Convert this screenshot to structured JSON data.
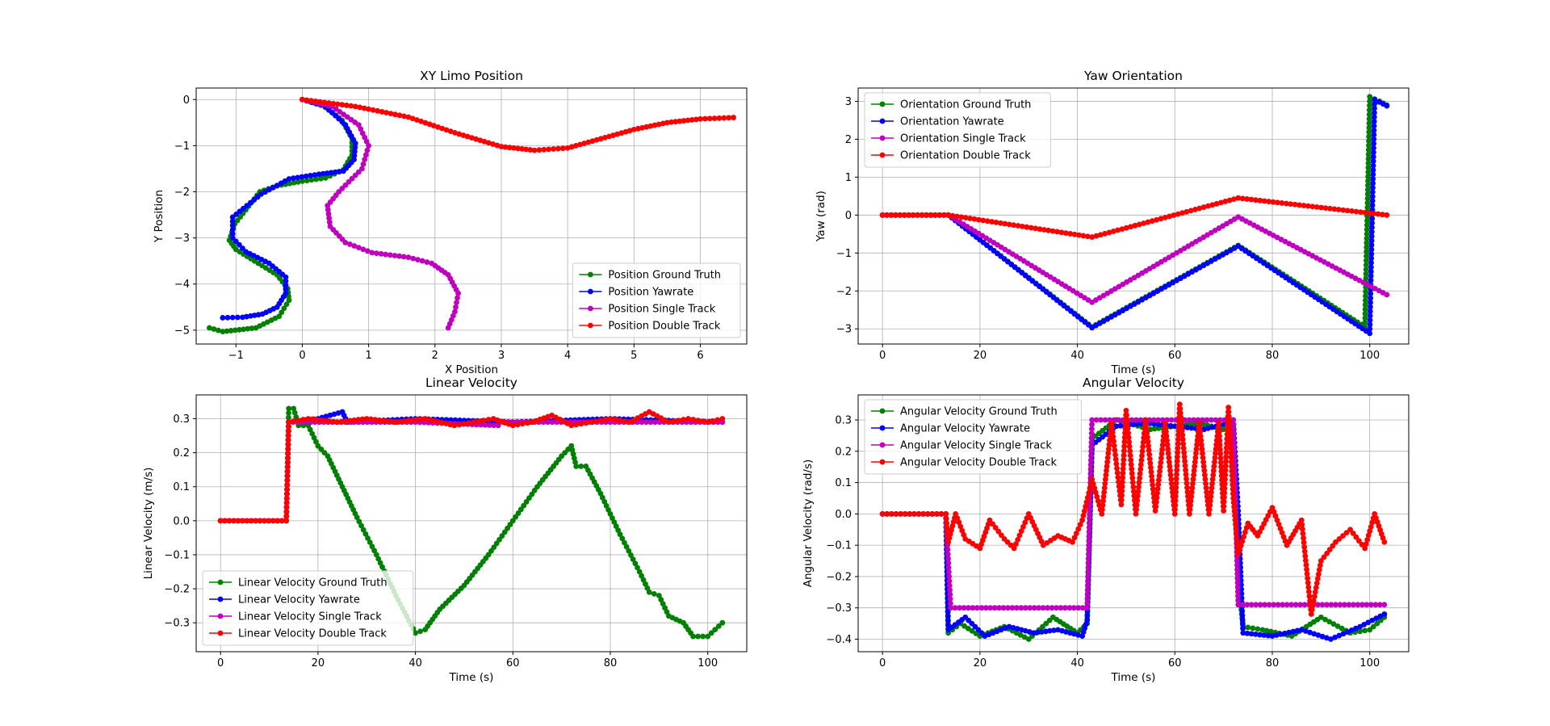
{
  "figure": {
    "background": "#ffffff"
  },
  "colors": {
    "green": "#008000",
    "blue": "#0000ff",
    "magenta": "#bf00bf",
    "red": "#ff0000"
  },
  "chart_data": [
    {
      "id": "xy",
      "type": "line",
      "title": "XY Limo Position",
      "xlabel": "X Position",
      "ylabel": "Y Position",
      "xlim": [
        -1.6,
        6.7
      ],
      "ylim": [
        -5.3,
        0.25
      ],
      "xticks": [
        -1,
        0,
        1,
        2,
        3,
        4,
        5,
        6
      ],
      "yticks": [
        -5,
        -4,
        -3,
        -2,
        -1,
        0
      ],
      "grid": true,
      "legend": "lower right",
      "series": [
        {
          "name": "Position Ground Truth",
          "color": "#008000",
          "x": [
            0,
            0.3,
            0.6,
            0.75,
            0.75,
            0.62,
            0.35,
            0.0,
            -0.38,
            -0.64,
            -1.02,
            -1.1,
            -1.0,
            -0.72,
            -0.38,
            -0.22,
            -0.2,
            -0.35,
            -0.7,
            -1.2,
            -1.4
          ],
          "y": [
            0,
            -0.12,
            -0.45,
            -0.85,
            -1.2,
            -1.52,
            -1.7,
            -1.77,
            -1.87,
            -2.0,
            -2.7,
            -3.05,
            -3.25,
            -3.5,
            -3.8,
            -4.1,
            -4.35,
            -4.7,
            -4.95,
            -5.03,
            -4.95
          ]
        },
        {
          "name": "Position Yawrate",
          "color": "#0000ff",
          "x": [
            0,
            0.35,
            0.65,
            0.8,
            0.78,
            0.62,
            0.25,
            -0.2,
            -0.62,
            -1.05,
            -1.05,
            -0.85,
            -0.5,
            -0.25,
            -0.25,
            -0.38,
            -0.6,
            -0.9,
            -1.2
          ],
          "y": [
            0,
            -0.15,
            -0.55,
            -0.95,
            -1.3,
            -1.55,
            -1.62,
            -1.72,
            -2.05,
            -2.55,
            -3.0,
            -3.3,
            -3.55,
            -3.85,
            -4.2,
            -4.5,
            -4.65,
            -4.72,
            -4.73
          ]
        },
        {
          "name": "Position Single Track",
          "color": "#bf00bf",
          "x": [
            0,
            0.45,
            0.85,
            1.0,
            0.9,
            0.55,
            0.38,
            0.42,
            0.65,
            1.05,
            1.6,
            1.95,
            2.2,
            2.35,
            2.3,
            2.2
          ],
          "y": [
            0,
            -0.15,
            -0.55,
            -1.0,
            -1.5,
            -2.0,
            -2.3,
            -2.75,
            -3.1,
            -3.32,
            -3.42,
            -3.55,
            -3.8,
            -4.2,
            -4.6,
            -4.95
          ]
        },
        {
          "name": "Position Double Track",
          "color": "#ff0000",
          "x": [
            0,
            0.8,
            1.6,
            2.3,
            3.0,
            3.5,
            4.0,
            4.5,
            5.0,
            5.5,
            6.0,
            6.5
          ],
          "y": [
            0,
            -0.15,
            -0.38,
            -0.72,
            -1.02,
            -1.1,
            -1.05,
            -0.85,
            -0.65,
            -0.5,
            -0.42,
            -0.39
          ]
        }
      ]
    },
    {
      "id": "yaw",
      "type": "line",
      "title": "Yaw Orientation",
      "xlabel": "Time (s)",
      "ylabel": "Yaw (rad)",
      "xlim": [
        -5,
        108
      ],
      "ylim": [
        -3.4,
        3.35
      ],
      "xticks": [
        0,
        20,
        40,
        60,
        80,
        100
      ],
      "yticks": [
        -3,
        -2,
        -1,
        0,
        1,
        2,
        3
      ],
      "grid": true,
      "legend": "upper left",
      "series": [
        {
          "name": "Orientation Ground Truth",
          "color": "#008000",
          "x": [
            0,
            13.5,
            43,
            73,
            99,
            100,
            102,
            103.5
          ],
          "y": [
            0,
            0,
            -2.95,
            -0.8,
            -2.95,
            3.12,
            3.0,
            2.9
          ]
        },
        {
          "name": "Orientation Yawrate",
          "color": "#0000ff",
          "x": [
            0,
            13.5,
            43,
            73,
            100,
            101,
            102,
            103.5
          ],
          "y": [
            0,
            0,
            -2.97,
            -0.82,
            -3.12,
            3.05,
            2.98,
            2.88
          ]
        },
        {
          "name": "Orientation Single Track",
          "color": "#bf00bf",
          "x": [
            0,
            13.5,
            43,
            73,
            103.5
          ],
          "y": [
            0,
            0,
            -2.3,
            -0.05,
            -2.1
          ]
        },
        {
          "name": "Orientation Double Track",
          "color": "#ff0000",
          "x": [
            0,
            13.5,
            43,
            73,
            103.5
          ],
          "y": [
            0,
            0,
            -0.58,
            0.45,
            0.0
          ]
        }
      ]
    },
    {
      "id": "linvel",
      "type": "line",
      "title": "Linear Velocity",
      "xlabel": "Time (s)",
      "ylabel": "Linear Velocity (m/s)",
      "xlim": [
        -5,
        108
      ],
      "ylim": [
        -0.385,
        0.37
      ],
      "xticks": [
        0,
        20,
        40,
        60,
        80,
        100
      ],
      "yticks": [
        -0.3,
        -0.2,
        -0.1,
        0.0,
        0.1,
        0.2,
        0.3
      ],
      "grid": true,
      "legend": "lower left",
      "series": [
        {
          "name": "Linear Velocity Ground Truth",
          "color": "#008000",
          "x": [
            0,
            13.5,
            14,
            15,
            16,
            18,
            20,
            22,
            25,
            28,
            32,
            36,
            40,
            42,
            45,
            50,
            55,
            60,
            65,
            70,
            72,
            73,
            75,
            78,
            82,
            86,
            88,
            90,
            92,
            95,
            97,
            100,
            103
          ],
          "y": [
            0,
            0,
            0.33,
            0.33,
            0.28,
            0.28,
            0.22,
            0.19,
            0.1,
            0.01,
            -0.1,
            -0.22,
            -0.33,
            -0.32,
            -0.26,
            -0.19,
            -0.1,
            0.0,
            0.1,
            0.19,
            0.22,
            0.16,
            0.16,
            0.08,
            -0.04,
            -0.15,
            -0.21,
            -0.22,
            -0.28,
            -0.3,
            -0.34,
            -0.34,
            -0.3
          ]
        },
        {
          "name": "Linear Velocity Yawrate",
          "color": "#0000ff",
          "x": [
            0,
            13.5,
            14,
            20,
            25,
            26,
            40,
            60,
            80,
            103
          ],
          "y": [
            0,
            0,
            0.29,
            0.3,
            0.32,
            0.29,
            0.3,
            0.29,
            0.3,
            0.29
          ]
        },
        {
          "name": "Linear Velocity Single Track",
          "color": "#bf00bf",
          "x": [
            0,
            13.5,
            14,
            40,
            57,
            58,
            80,
            103
          ],
          "y": [
            0,
            0,
            0.29,
            0.29,
            0.28,
            0.29,
            0.29,
            0.29
          ]
        },
        {
          "name": "Linear Velocity Double Track",
          "color": "#ff0000",
          "x": [
            0,
            13.5,
            14,
            18,
            24,
            30,
            36,
            42,
            48,
            52,
            56,
            60,
            64,
            68,
            72,
            76,
            80,
            84,
            88,
            92,
            96,
            100,
            103
          ],
          "y": [
            0,
            0,
            0.29,
            0.3,
            0.29,
            0.3,
            0.29,
            0.3,
            0.28,
            0.29,
            0.3,
            0.28,
            0.29,
            0.31,
            0.28,
            0.29,
            0.3,
            0.29,
            0.32,
            0.29,
            0.3,
            0.29,
            0.3
          ]
        }
      ]
    },
    {
      "id": "angvel",
      "type": "line",
      "title": "Angular Velocity",
      "xlabel": "Time (s)",
      "ylabel": "Angular Velocity (rad/s)",
      "xlim": [
        -5,
        108
      ],
      "ylim": [
        -0.44,
        0.38
      ],
      "xticks": [
        0,
        20,
        40,
        60,
        80,
        100
      ],
      "yticks": [
        -0.4,
        -0.3,
        -0.2,
        -0.1,
        0.0,
        0.1,
        0.2,
        0.3
      ],
      "grid": true,
      "legend": "upper left",
      "series": [
        {
          "name": "Angular Velocity Ground Truth",
          "color": "#008000",
          "x": [
            0,
            13,
            13.5,
            16,
            20,
            25,
            30,
            35,
            40,
            42,
            43,
            48,
            55,
            60,
            65,
            70,
            72,
            73,
            74,
            78,
            84,
            90,
            96,
            100,
            103
          ],
          "y": [
            0,
            0,
            -0.38,
            -0.35,
            -0.39,
            -0.36,
            -0.4,
            -0.33,
            -0.38,
            -0.35,
            0.24,
            0.3,
            0.27,
            0.28,
            0.29,
            0.27,
            0.28,
            -0.21,
            -0.36,
            -0.37,
            -0.39,
            -0.33,
            -0.38,
            -0.37,
            -0.33
          ]
        },
        {
          "name": "Angular Velocity Yawrate",
          "color": "#0000ff",
          "x": [
            0,
            13,
            13.5,
            17,
            21,
            26,
            31,
            36,
            41,
            42,
            43,
            48,
            54,
            60,
            66,
            71,
            72,
            73,
            74,
            80,
            86,
            92,
            98,
            103
          ],
          "y": [
            0,
            0,
            -0.37,
            -0.33,
            -0.39,
            -0.36,
            -0.38,
            -0.37,
            -0.39,
            -0.34,
            0.22,
            0.28,
            0.29,
            0.28,
            0.27,
            0.29,
            0.3,
            0.01,
            -0.38,
            -0.39,
            -0.37,
            -0.4,
            -0.36,
            -0.32
          ]
        },
        {
          "name": "Angular Velocity Single Track",
          "color": "#bf00bf",
          "x": [
            0,
            13,
            14,
            42,
            43,
            72,
            73,
            103
          ],
          "y": [
            0,
            0,
            -0.3,
            -0.3,
            0.3,
            0.3,
            -0.29,
            -0.29
          ]
        },
        {
          "name": "Angular Velocity Double Track",
          "color": "#ff0000",
          "x": [
            0,
            13,
            13.5,
            15,
            17,
            20,
            22,
            25,
            27,
            30,
            33,
            36,
            39,
            41,
            43,
            45,
            47,
            49,
            50,
            52,
            54,
            56,
            58,
            60,
            61,
            63,
            65,
            67,
            69,
            70,
            71,
            72,
            73,
            75,
            77,
            80,
            83,
            86,
            88,
            90,
            93,
            96,
            99,
            101,
            103
          ],
          "y": [
            0,
            0,
            -0.09,
            0.0,
            -0.08,
            -0.11,
            -0.02,
            -0.08,
            -0.11,
            0.0,
            -0.1,
            -0.07,
            -0.09,
            -0.02,
            0.11,
            0.0,
            0.29,
            0.03,
            0.33,
            0.0,
            0.3,
            0.01,
            0.29,
            0.0,
            0.35,
            0.0,
            0.29,
            0.0,
            0.29,
            0.01,
            0.34,
            0.05,
            -0.13,
            -0.03,
            -0.07,
            0.02,
            -0.1,
            -0.02,
            -0.32,
            -0.15,
            -0.09,
            -0.05,
            -0.11,
            0.0,
            -0.09
          ]
        }
      ]
    }
  ]
}
